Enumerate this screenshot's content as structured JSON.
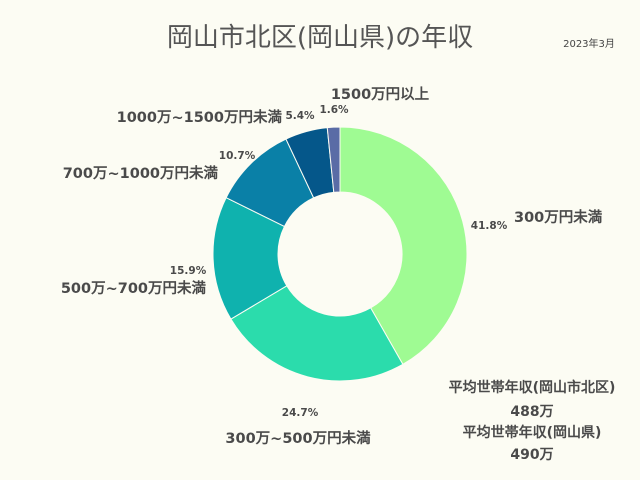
{
  "title": "岡山市北区(岡山県)の年収",
  "date": "2023年3月",
  "chart_data": {
    "type": "pie",
    "donut": true,
    "title": "岡山市北区(岡山県)の年収",
    "categories": [
      "300万円未満",
      "300万~500万円未満",
      "500万~700万円未満",
      "700万~1000万円未満",
      "1000万~1500万円未満",
      "1500万円以上"
    ],
    "values": [
      41.8,
      24.7,
      15.9,
      10.7,
      5.4,
      1.6
    ],
    "value_labels": [
      "41.8%",
      "24.7%",
      "15.9%",
      "10.7%",
      "5.4%",
      "1.6%"
    ],
    "colors": [
      "#9ffb93",
      "#2bdcac",
      "#0fb2ae",
      "#0a80a7",
      "#05578a",
      "#5a6ca6"
    ]
  },
  "notes": [
    {
      "label": "平均世帯年収(岡山市北区)",
      "value": "488万"
    },
    {
      "label": "平均世帯年収(岡山県)",
      "value": "490万"
    }
  ]
}
